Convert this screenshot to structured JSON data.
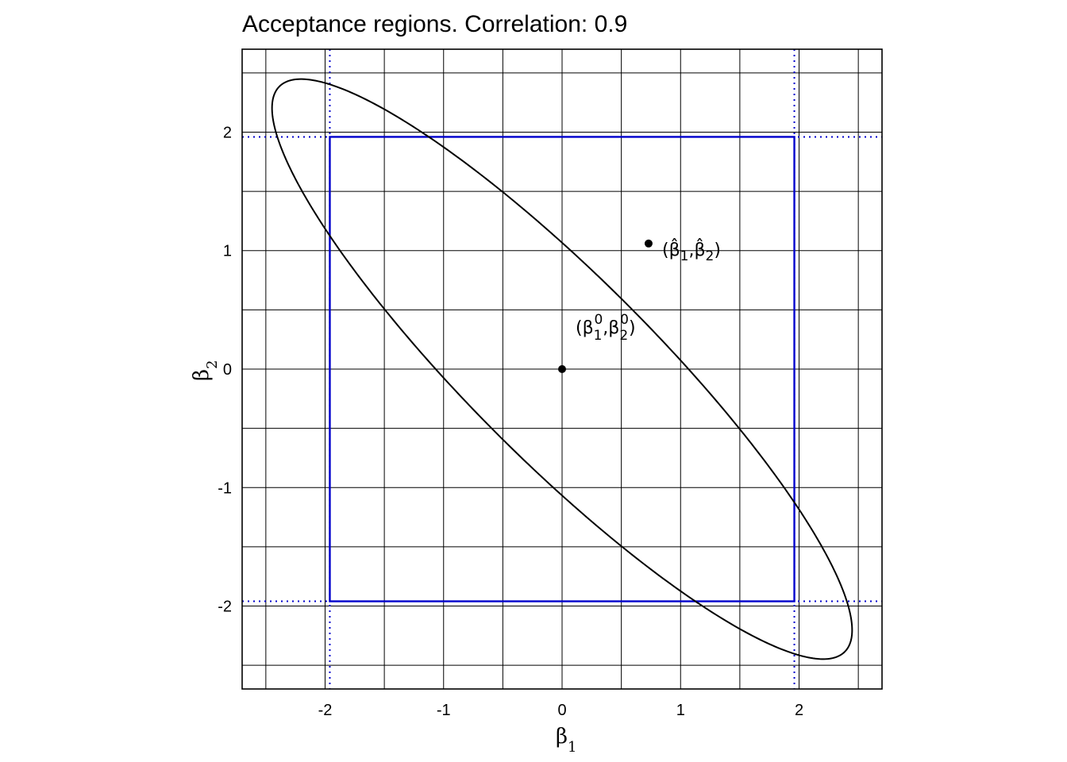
{
  "chart_data": {
    "type": "scatter",
    "title": "Acceptance regions. Correlation: 0.9",
    "xlabel": "β1",
    "ylabel": "β2",
    "xlim": [
      -2.7,
      2.7
    ],
    "ylim": [
      -2.7,
      2.7
    ],
    "grid": true,
    "correlation": 0.9,
    "critical_value": 1.96,
    "x_ticks": [
      -2,
      -1,
      0,
      1,
      2
    ],
    "y_ticks": [
      -2,
      -1,
      0,
      1,
      2
    ],
    "x_tick_labels": [
      "-2",
      "-1",
      "0",
      "1",
      "2"
    ],
    "y_tick_labels": [
      "-2",
      "-1",
      "0",
      "1",
      "2"
    ],
    "minor_ticks": [
      -2.5,
      -1.5,
      -0.5,
      0.5,
      1.5,
      2.5
    ],
    "ellipse": {
      "center": [
        0,
        0
      ],
      "correlation": 0.9,
      "radius": 2.4477,
      "color": "#000000"
    },
    "box": {
      "x": [
        -1.96,
        1.96
      ],
      "y": [
        -1.96,
        1.96
      ],
      "color": "#0000cc"
    },
    "points": [
      {
        "name": "null",
        "x": 0,
        "y": 0,
        "label": "(β10,β20)"
      },
      {
        "name": "estimate",
        "x": 0.73,
        "y": 1.06,
        "label": "(β̂1,β̂2)"
      }
    ],
    "labels": {
      "xaxis_main": "β",
      "xaxis_sub": "1",
      "yaxis_main": "β",
      "yaxis_sub": "2",
      "null_open": "(β",
      "null_sub1": "1",
      "null_sup1": "0",
      "null_mid": ",β",
      "null_sub2": "2",
      "null_sup2": "0",
      "null_close": ")",
      "est_open": "(",
      "est_beta1": "β̂",
      "est_sub1": "1",
      "est_comma": ",",
      "est_beta2": "β̂",
      "est_sub2": "2",
      "est_close": ")"
    }
  }
}
